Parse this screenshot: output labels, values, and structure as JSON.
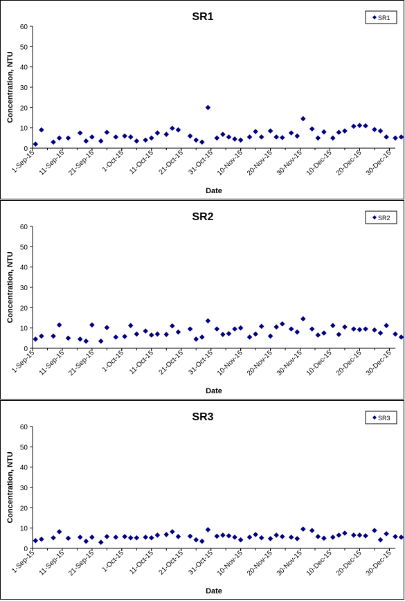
{
  "chart_data": [
    {
      "type": "scatter",
      "title": "SR1",
      "xlabel": "Date",
      "ylabel": "Concentration, NTU",
      "legend": "top-right",
      "series": [
        {
          "name": "SR1",
          "color": "#000080",
          "marker": "diamond"
        }
      ],
      "x_ticks": [
        "1-Sep-15",
        "11-Sep-15",
        "21-Sep-15",
        "1-Oct-15",
        "11-Oct-15",
        "21-Oct-15",
        "31-Oct-15",
        "10-Nov-15",
        "20-Nov-15",
        "30-Nov-15",
        "10-Dec-15",
        "20-Dec-15",
        "30-Dec-15"
      ],
      "y_ticks": [
        0,
        10,
        20,
        30,
        40,
        50,
        60
      ],
      "ylim": [
        0,
        60
      ],
      "xlim": [
        "1-Sep-15",
        "1-Jan-16"
      ],
      "grid": false,
      "points": [
        [
          "2015-09-02",
          2
        ],
        [
          "2015-09-04",
          9
        ],
        [
          "2015-09-08",
          3
        ],
        [
          "2015-09-10",
          5
        ],
        [
          "2015-09-13",
          5
        ],
        [
          "2015-09-17",
          7.5
        ],
        [
          "2015-09-19",
          3.5
        ],
        [
          "2015-09-21",
          5.5
        ],
        [
          "2015-09-24",
          3.5
        ],
        [
          "2015-09-26",
          7.8
        ],
        [
          "2015-09-29",
          5.5
        ],
        [
          "2015-10-02",
          6
        ],
        [
          "2015-10-04",
          5.5
        ],
        [
          "2015-10-06",
          3.5
        ],
        [
          "2015-10-09",
          4
        ],
        [
          "2015-10-11",
          5
        ],
        [
          "2015-10-13",
          7.5
        ],
        [
          "2015-10-16",
          6.8
        ],
        [
          "2015-10-18",
          9.8
        ],
        [
          "2015-10-20",
          9
        ],
        [
          "2015-10-24",
          6
        ],
        [
          "2015-10-26",
          4
        ],
        [
          "2015-10-28",
          3
        ],
        [
          "2015-10-30",
          20
        ],
        [
          "2015-11-02",
          5
        ],
        [
          "2015-11-04",
          6.8
        ],
        [
          "2015-11-06",
          5.5
        ],
        [
          "2015-11-08",
          4.5
        ],
        [
          "2015-11-10",
          4
        ],
        [
          "2015-11-13",
          5.5
        ],
        [
          "2015-11-15",
          8.2
        ],
        [
          "2015-11-17",
          5.5
        ],
        [
          "2015-11-20",
          8.5
        ],
        [
          "2015-11-22",
          5.5
        ],
        [
          "2015-11-24",
          5.2
        ],
        [
          "2015-11-27",
          7.5
        ],
        [
          "2015-11-29",
          6
        ],
        [
          "2015-12-01",
          14.5
        ],
        [
          "2015-12-04",
          9.5
        ],
        [
          "2015-12-06",
          5
        ],
        [
          "2015-12-08",
          8
        ],
        [
          "2015-12-11",
          5
        ],
        [
          "2015-12-13",
          7.8
        ],
        [
          "2015-12-15",
          8.5
        ],
        [
          "2015-12-18",
          10.8
        ],
        [
          "2015-12-20",
          11.2
        ],
        [
          "2015-12-22",
          11
        ],
        [
          "2015-12-25",
          9.2
        ],
        [
          "2015-12-27",
          8.5
        ],
        [
          "2015-12-29",
          5.5
        ],
        [
          "2016-01-01",
          5
        ],
        [
          "2016-01-03",
          5.5
        ]
      ]
    },
    {
      "type": "scatter",
      "title": "SR2",
      "xlabel": "Date",
      "ylabel": "Concentration, NTU",
      "legend": "top-right",
      "series": [
        {
          "name": "SR2",
          "color": "#000080",
          "marker": "diamond"
        }
      ],
      "x_ticks": [
        "1-Sep-15",
        "11-Sep-15",
        "21-Sep-15",
        "1-Oct-15",
        "11-Oct-15",
        "21-Oct-15",
        "31-Oct-15",
        "10-Nov-15",
        "20-Nov-15",
        "30-Nov-15",
        "10-Dec-15",
        "20-Dec-15",
        "30-Dec-15"
      ],
      "y_ticks": [
        0,
        10,
        20,
        30,
        40,
        50,
        60
      ],
      "ylim": [
        0,
        60
      ],
      "xlim": [
        "1-Sep-15",
        "1-Jan-16"
      ],
      "grid": false,
      "points": [
        [
          "2015-09-02",
          4.5
        ],
        [
          "2015-09-04",
          6
        ],
        [
          "2015-09-08",
          6
        ],
        [
          "2015-09-10",
          11.5
        ],
        [
          "2015-09-13",
          5
        ],
        [
          "2015-09-17",
          4.5
        ],
        [
          "2015-09-19",
          3.5
        ],
        [
          "2015-09-21",
          11.5
        ],
        [
          "2015-09-24",
          3.5
        ],
        [
          "2015-09-26",
          10.2
        ],
        [
          "2015-09-29",
          5.5
        ],
        [
          "2015-10-02",
          5.8
        ],
        [
          "2015-10-04",
          11.2
        ],
        [
          "2015-10-06",
          7
        ],
        [
          "2015-10-09",
          8.5
        ],
        [
          "2015-10-11",
          6.5
        ],
        [
          "2015-10-13",
          7
        ],
        [
          "2015-10-16",
          6.8
        ],
        [
          "2015-10-18",
          11
        ],
        [
          "2015-10-20",
          8
        ],
        [
          "2015-10-24",
          9.5
        ],
        [
          "2015-10-26",
          4.5
        ],
        [
          "2015-10-28",
          5.5
        ],
        [
          "2015-10-30",
          13.5
        ],
        [
          "2015-11-02",
          9.5
        ],
        [
          "2015-11-04",
          6.8
        ],
        [
          "2015-11-06",
          7.2
        ],
        [
          "2015-11-08",
          9.5
        ],
        [
          "2015-11-10",
          10
        ],
        [
          "2015-11-13",
          5.5
        ],
        [
          "2015-11-15",
          7
        ],
        [
          "2015-11-17",
          10.8
        ],
        [
          "2015-11-20",
          6
        ],
        [
          "2015-11-22",
          10.5
        ],
        [
          "2015-11-24",
          12
        ],
        [
          "2015-11-27",
          9.5
        ],
        [
          "2015-11-29",
          8
        ],
        [
          "2015-12-01",
          14.5
        ],
        [
          "2015-12-04",
          9.5
        ],
        [
          "2015-12-06",
          6.5
        ],
        [
          "2015-12-08",
          7.5
        ],
        [
          "2015-12-11",
          11.2
        ],
        [
          "2015-12-13",
          6.8
        ],
        [
          "2015-12-15",
          10.5
        ],
        [
          "2015-12-18",
          9.5
        ],
        [
          "2015-12-20",
          9.2
        ],
        [
          "2015-12-22",
          9.5
        ],
        [
          "2015-12-25",
          9
        ],
        [
          "2015-12-27",
          7.5
        ],
        [
          "2015-12-29",
          11.2
        ],
        [
          "2016-01-01",
          7
        ],
        [
          "2016-01-03",
          5.5
        ]
      ]
    },
    {
      "type": "scatter",
      "title": "SR3",
      "xlabel": "Date",
      "ylabel": "Concentration, NTU",
      "legend": "top-right",
      "series": [
        {
          "name": "SR3",
          "color": "#000080",
          "marker": "diamond"
        }
      ],
      "x_ticks": [
        "1-Sep-15",
        "11-Sep-15",
        "21-Sep-15",
        "1-Oct-15",
        "11-Oct-15",
        "21-Oct-15",
        "31-Oct-15",
        "10-Nov-15",
        "20-Nov-15",
        "30-Nov-15",
        "10-Dec-15",
        "20-Dec-15",
        "30-Dec-15"
      ],
      "y_ticks": [
        0,
        10,
        20,
        30,
        40,
        50,
        60
      ],
      "ylim": [
        0,
        60
      ],
      "xlim": [
        "1-Sep-15",
        "1-Jan-16"
      ],
      "grid": false,
      "points": [
        [
          "2015-09-02",
          3.8
        ],
        [
          "2015-09-04",
          4.5
        ],
        [
          "2015-09-08",
          5.2
        ],
        [
          "2015-09-10",
          8.2
        ],
        [
          "2015-09-13",
          5
        ],
        [
          "2015-09-17",
          5.5
        ],
        [
          "2015-09-19",
          3.5
        ],
        [
          "2015-09-21",
          5.5
        ],
        [
          "2015-09-24",
          3
        ],
        [
          "2015-09-26",
          5.8
        ],
        [
          "2015-09-29",
          5.5
        ],
        [
          "2015-10-02",
          5.8
        ],
        [
          "2015-10-04",
          5.2
        ],
        [
          "2015-10-06",
          5.2
        ],
        [
          "2015-10-09",
          5.5
        ],
        [
          "2015-10-11",
          5.2
        ],
        [
          "2015-10-13",
          6.5
        ],
        [
          "2015-10-16",
          6.8
        ],
        [
          "2015-10-18",
          8.2
        ],
        [
          "2015-10-20",
          5.8
        ],
        [
          "2015-10-24",
          6
        ],
        [
          "2015-10-26",
          4.2
        ],
        [
          "2015-10-28",
          3.5
        ],
        [
          "2015-10-30",
          9.2
        ],
        [
          "2015-11-02",
          6
        ],
        [
          "2015-11-04",
          6.5
        ],
        [
          "2015-11-06",
          6.2
        ],
        [
          "2015-11-08",
          5.5
        ],
        [
          "2015-11-10",
          4.2
        ],
        [
          "2015-11-13",
          5.5
        ],
        [
          "2015-11-15",
          6.8
        ],
        [
          "2015-11-17",
          5.2
        ],
        [
          "2015-11-20",
          4.8
        ],
        [
          "2015-11-22",
          6.5
        ],
        [
          "2015-11-24",
          5.8
        ],
        [
          "2015-11-27",
          5.5
        ],
        [
          "2015-11-29",
          4.8
        ],
        [
          "2015-12-01",
          9.5
        ],
        [
          "2015-12-04",
          8.8
        ],
        [
          "2015-12-06",
          5.8
        ],
        [
          "2015-12-08",
          5
        ],
        [
          "2015-12-11",
          5.5
        ],
        [
          "2015-12-13",
          6.5
        ],
        [
          "2015-12-15",
          7.5
        ],
        [
          "2015-12-18",
          6.5
        ],
        [
          "2015-12-20",
          6.5
        ],
        [
          "2015-12-22",
          6.2
        ],
        [
          "2015-12-25",
          8.8
        ],
        [
          "2015-12-27",
          4.2
        ],
        [
          "2015-12-29",
          7.2
        ],
        [
          "2016-01-01",
          5.8
        ],
        [
          "2016-01-03",
          5.5
        ]
      ]
    }
  ]
}
